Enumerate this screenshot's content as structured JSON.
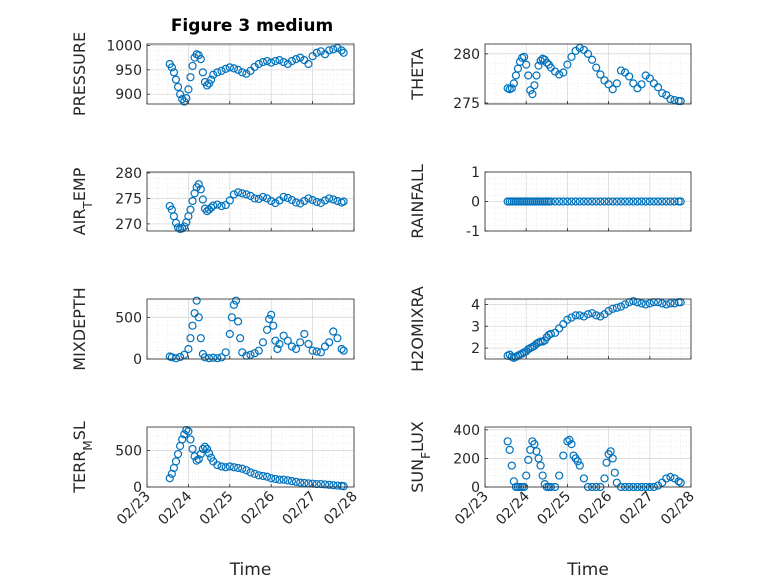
{
  "figure": {
    "title": "Figure 3 medium"
  },
  "colors": {
    "marker": "#0072BD",
    "axis": "#262626",
    "grid": "#d9d9d9",
    "background": "#ffffff"
  },
  "chart_data": [
    {
      "type": "scatter",
      "ylabel": "PRESSURE",
      "yticks": [
        "900",
        "950",
        "1000"
      ],
      "ylim": [
        880,
        1003
      ],
      "xlabel": "",
      "xticks": [],
      "xlim": [
        0,
        5
      ],
      "grid": true,
      "x": [
        0.55,
        0.6,
        0.65,
        0.7,
        0.75,
        0.8,
        0.85,
        0.9,
        0.95,
        1.0,
        1.05,
        1.1,
        1.15,
        1.2,
        1.25,
        1.3,
        1.35,
        1.4,
        1.45,
        1.5,
        1.55,
        1.6,
        1.7,
        1.8,
        1.9,
        2.0,
        2.1,
        2.2,
        2.3,
        2.4,
        2.5,
        2.6,
        2.7,
        2.8,
        2.9,
        3.0,
        3.1,
        3.2,
        3.3,
        3.4,
        3.5,
        3.6,
        3.7,
        3.8,
        3.9,
        4.0,
        4.1,
        4.2,
        4.3,
        4.4,
        4.5,
        4.6,
        4.7,
        4.75
      ],
      "y": [
        962,
        955,
        945,
        930,
        915,
        900,
        890,
        885,
        892,
        910,
        935,
        958,
        975,
        982,
        980,
        972,
        945,
        925,
        918,
        922,
        930,
        940,
        945,
        948,
        952,
        955,
        953,
        950,
        945,
        942,
        948,
        956,
        962,
        966,
        968,
        965,
        968,
        970,
        966,
        962,
        968,
        972,
        975,
        970,
        962,
        978,
        985,
        988,
        982,
        990,
        992,
        995,
        990,
        985
      ]
    },
    {
      "type": "scatter",
      "ylabel": "THETA",
      "yticks": [
        "275",
        "280"
      ],
      "ylim": [
        274.9,
        281.0
      ],
      "xlabel": "",
      "xticks": [],
      "xlim": [
        0,
        5
      ],
      "grid": true,
      "x": [
        0.55,
        0.6,
        0.65,
        0.7,
        0.75,
        0.8,
        0.85,
        0.9,
        0.95,
        1.0,
        1.05,
        1.1,
        1.15,
        1.2,
        1.25,
        1.3,
        1.35,
        1.4,
        1.45,
        1.5,
        1.55,
        1.6,
        1.7,
        1.8,
        1.9,
        2.0,
        2.1,
        2.2,
        2.3,
        2.4,
        2.5,
        2.6,
        2.7,
        2.8,
        2.9,
        3.0,
        3.1,
        3.2,
        3.3,
        3.4,
        3.5,
        3.6,
        3.7,
        3.8,
        3.9,
        4.0,
        4.1,
        4.2,
        4.3,
        4.4,
        4.5,
        4.6,
        4.7,
        4.75
      ],
      "y": [
        276.5,
        276.4,
        276.5,
        277.0,
        277.8,
        278.5,
        279.2,
        279.6,
        279.7,
        278.9,
        277.8,
        276.3,
        275.9,
        276.8,
        277.8,
        278.8,
        279.3,
        279.5,
        279.4,
        279.1,
        278.9,
        278.6,
        278.2,
        277.9,
        278.1,
        278.9,
        279.7,
        280.3,
        280.6,
        280.4,
        280.0,
        279.4,
        278.6,
        277.9,
        277.3,
        276.9,
        276.4,
        277.0,
        278.3,
        278.1,
        277.7,
        277.0,
        276.5,
        276.9,
        277.8,
        277.5,
        277.0,
        276.6,
        276.0,
        275.8,
        275.4,
        275.3,
        275.2,
        275.2
      ]
    },
    {
      "type": "scatter",
      "ylabel": "AIR_TEMP",
      "yticks": [
        "270",
        "275",
        "280"
      ],
      "ylim": [
        268.6,
        280.2
      ],
      "xlabel": "",
      "xticks": [],
      "xlim": [
        0,
        5
      ],
      "grid": true,
      "x": [
        0.55,
        0.6,
        0.65,
        0.7,
        0.75,
        0.8,
        0.85,
        0.9,
        0.95,
        1.0,
        1.05,
        1.1,
        1.15,
        1.2,
        1.25,
        1.3,
        1.35,
        1.4,
        1.45,
        1.5,
        1.55,
        1.6,
        1.7,
        1.8,
        1.9,
        2.0,
        2.1,
        2.2,
        2.3,
        2.4,
        2.5,
        2.6,
        2.7,
        2.8,
        2.9,
        3.0,
        3.1,
        3.2,
        3.3,
        3.4,
        3.5,
        3.6,
        3.7,
        3.8,
        3.9,
        4.0,
        4.1,
        4.2,
        4.3,
        4.4,
        4.5,
        4.6,
        4.7,
        4.75
      ],
      "y": [
        273.5,
        272.8,
        271.5,
        270.2,
        269.3,
        269.0,
        269.1,
        269.5,
        270.3,
        271.5,
        272.8,
        274.5,
        276.0,
        277.2,
        277.8,
        276.8,
        274.8,
        273.0,
        272.5,
        272.8,
        273.2,
        273.6,
        273.8,
        273.5,
        273.7,
        274.6,
        275.8,
        276.2,
        276.0,
        275.8,
        275.5,
        275.0,
        274.9,
        275.3,
        275.0,
        274.5,
        274.1,
        274.6,
        275.3,
        275.1,
        274.7,
        274.2,
        274.0,
        274.5,
        275.0,
        274.7,
        274.3,
        274.1,
        274.6,
        275.0,
        274.8,
        274.5,
        274.2,
        274.4
      ]
    },
    {
      "type": "scatter",
      "ylabel": "RAINFALL",
      "yticks": [
        "-1",
        "0",
        "1"
      ],
      "ylim": [
        -1,
        1
      ],
      "xlabel": "",
      "xticks": [],
      "xlim": [
        0,
        5
      ],
      "grid": true,
      "x": [
        0.55,
        0.6,
        0.65,
        0.7,
        0.75,
        0.8,
        0.85,
        0.9,
        0.95,
        1.0,
        1.05,
        1.1,
        1.15,
        1.2,
        1.25,
        1.3,
        1.35,
        1.4,
        1.45,
        1.5,
        1.55,
        1.6,
        1.7,
        1.8,
        1.9,
        2.0,
        2.1,
        2.2,
        2.3,
        2.4,
        2.5,
        2.6,
        2.7,
        2.8,
        2.9,
        3.0,
        3.1,
        3.2,
        3.3,
        3.4,
        3.5,
        3.6,
        3.7,
        3.8,
        3.9,
        4.0,
        4.1,
        4.2,
        4.3,
        4.4,
        4.5,
        4.6,
        4.7,
        4.75
      ],
      "y": [
        0,
        0,
        0,
        0,
        0,
        0,
        0,
        0,
        0,
        0,
        0,
        0,
        0,
        0,
        0,
        0,
        0,
        0,
        0,
        0,
        0,
        0,
        0,
        0,
        0,
        0,
        0,
        0,
        0,
        0,
        0,
        0,
        0,
        0,
        0,
        0,
        0,
        0,
        0,
        0,
        0,
        0,
        0,
        0,
        0,
        0,
        0,
        0,
        0,
        0,
        0,
        0,
        0,
        0
      ]
    },
    {
      "type": "scatter",
      "ylabel": "MIXDEPTH",
      "yticks": [
        "0",
        "500"
      ],
      "ylim": [
        0,
        720
      ],
      "xlabel": "",
      "xticks": [],
      "xlim": [
        0,
        5
      ],
      "grid": true,
      "x": [
        0.55,
        0.6,
        0.7,
        0.8,
        0.9,
        1.0,
        1.05,
        1.1,
        1.15,
        1.2,
        1.25,
        1.3,
        1.35,
        1.4,
        1.5,
        1.6,
        1.7,
        1.8,
        1.9,
        2.0,
        2.05,
        2.1,
        2.15,
        2.2,
        2.25,
        2.3,
        2.4,
        2.5,
        2.6,
        2.7,
        2.8,
        2.9,
        2.95,
        3.0,
        3.05,
        3.1,
        3.15,
        3.2,
        3.3,
        3.4,
        3.5,
        3.6,
        3.7,
        3.8,
        3.9,
        4.0,
        4.1,
        4.2,
        4.3,
        4.4,
        4.5,
        4.6,
        4.7,
        4.75
      ],
      "y": [
        30,
        20,
        10,
        25,
        50,
        120,
        250,
        400,
        550,
        700,
        500,
        250,
        60,
        20,
        10,
        15,
        10,
        20,
        80,
        300,
        500,
        650,
        700,
        450,
        250,
        80,
        40,
        50,
        70,
        100,
        200,
        350,
        480,
        530,
        400,
        220,
        120,
        180,
        280,
        220,
        150,
        120,
        200,
        300,
        180,
        100,
        90,
        80,
        150,
        200,
        330,
        250,
        120,
        100
      ]
    },
    {
      "type": "scatter",
      "ylabel": "H2OMIXRA",
      "yticks": [
        "2",
        "3",
        "4"
      ],
      "ylim": [
        1.5,
        4.25
      ],
      "xlabel": "",
      "xticks": [],
      "xlim": [
        0,
        5
      ],
      "grid": true,
      "x": [
        0.55,
        0.6,
        0.65,
        0.7,
        0.75,
        0.8,
        0.85,
        0.9,
        0.95,
        1.0,
        1.05,
        1.1,
        1.15,
        1.2,
        1.25,
        1.3,
        1.35,
        1.4,
        1.45,
        1.5,
        1.55,
        1.6,
        1.7,
        1.8,
        1.9,
        2.0,
        2.1,
        2.2,
        2.3,
        2.4,
        2.5,
        2.6,
        2.7,
        2.8,
        2.9,
        3.0,
        3.1,
        3.2,
        3.3,
        3.4,
        3.5,
        3.6,
        3.7,
        3.8,
        3.9,
        4.0,
        4.1,
        4.2,
        4.3,
        4.4,
        4.5,
        4.6,
        4.7,
        4.75
      ],
      "y": [
        1.65,
        1.7,
        1.6,
        1.55,
        1.6,
        1.65,
        1.7,
        1.75,
        1.8,
        1.85,
        1.95,
        2.0,
        2.05,
        2.1,
        2.2,
        2.25,
        2.3,
        2.3,
        2.35,
        2.5,
        2.6,
        2.65,
        2.7,
        2.9,
        3.1,
        3.3,
        3.4,
        3.5,
        3.5,
        3.45,
        3.55,
        3.6,
        3.5,
        3.45,
        3.55,
        3.7,
        3.8,
        3.85,
        3.9,
        4.0,
        4.1,
        4.15,
        4.1,
        4.05,
        4.0,
        4.05,
        4.1,
        4.1,
        4.05,
        4.0,
        4.05,
        4.05,
        4.1,
        4.1
      ]
    },
    {
      "type": "scatter",
      "ylabel": "TERR_MSL",
      "yticks": [
        "0",
        "500"
      ],
      "ylim": [
        0,
        820
      ],
      "xlabel": "Time",
      "xticks": [
        "02/23",
        "02/24",
        "02/25",
        "02/26",
        "02/27",
        "02/28"
      ],
      "xlim": [
        0,
        5
      ],
      "grid": true,
      "x": [
        0.55,
        0.6,
        0.65,
        0.7,
        0.75,
        0.8,
        0.85,
        0.9,
        0.95,
        1.0,
        1.05,
        1.1,
        1.15,
        1.2,
        1.25,
        1.3,
        1.35,
        1.4,
        1.45,
        1.5,
        1.55,
        1.6,
        1.7,
        1.8,
        1.9,
        2.0,
        2.1,
        2.2,
        2.3,
        2.4,
        2.5,
        2.6,
        2.7,
        2.8,
        2.9,
        3.0,
        3.1,
        3.2,
        3.3,
        3.4,
        3.5,
        3.6,
        3.7,
        3.8,
        3.9,
        4.0,
        4.1,
        4.2,
        4.3,
        4.4,
        4.5,
        4.6,
        4.7,
        4.75
      ],
      "y": [
        120,
        180,
        260,
        350,
        450,
        560,
        650,
        720,
        780,
        760,
        650,
        520,
        420,
        360,
        380,
        450,
        520,
        550,
        520,
        460,
        400,
        350,
        300,
        280,
        270,
        280,
        270,
        260,
        250,
        230,
        200,
        180,
        160,
        150,
        140,
        120,
        110,
        100,
        100,
        90,
        80,
        70,
        60,
        55,
        50,
        45,
        40,
        40,
        35,
        30,
        25,
        20,
        15,
        10
      ]
    },
    {
      "type": "scatter",
      "ylabel": "SUN_FLUX",
      "yticks": [
        "0",
        "200",
        "400"
      ],
      "ylim": [
        0,
        420
      ],
      "xlabel": "Time",
      "xticks": [
        "02/23",
        "02/24",
        "02/25",
        "02/26",
        "02/27",
        "02/28"
      ],
      "xlim": [
        0,
        5
      ],
      "grid": true,
      "x": [
        0.55,
        0.6,
        0.65,
        0.7,
        0.75,
        0.8,
        0.85,
        0.9,
        0.95,
        1.0,
        1.05,
        1.1,
        1.15,
        1.2,
        1.25,
        1.3,
        1.35,
        1.4,
        1.45,
        1.5,
        1.55,
        1.6,
        1.7,
        1.8,
        1.9,
        2.0,
        2.05,
        2.1,
        2.15,
        2.2,
        2.25,
        2.3,
        2.4,
        2.5,
        2.6,
        2.7,
        2.8,
        2.9,
        2.95,
        3.0,
        3.05,
        3.1,
        3.15,
        3.2,
        3.3,
        3.4,
        3.5,
        3.6,
        3.7,
        3.8,
        3.9,
        4.0,
        4.1,
        4.2,
        4.3,
        4.4,
        4.5,
        4.6,
        4.7,
        4.75
      ],
      "y": [
        320,
        260,
        150,
        40,
        0,
        0,
        0,
        0,
        0,
        80,
        190,
        260,
        320,
        300,
        250,
        200,
        150,
        80,
        20,
        0,
        0,
        0,
        0,
        80,
        220,
        320,
        330,
        300,
        220,
        200,
        180,
        150,
        60,
        0,
        0,
        0,
        0,
        60,
        170,
        230,
        250,
        200,
        100,
        30,
        0,
        0,
        0,
        0,
        0,
        0,
        0,
        0,
        0,
        10,
        30,
        60,
        70,
        60,
        40,
        30
      ]
    }
  ]
}
